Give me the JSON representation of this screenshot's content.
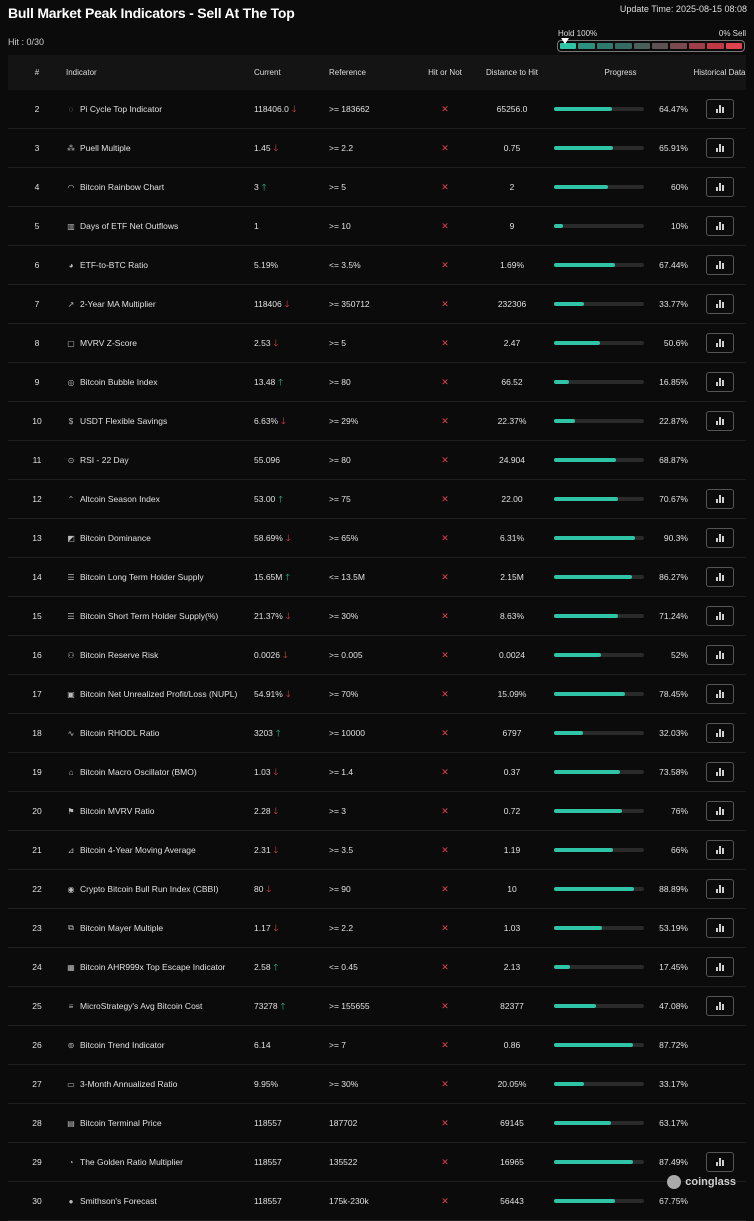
{
  "header": {
    "title": "Bull Market Peak Indicators - Sell At The Top",
    "update_time": "Update Time: 2025-08-15 08:08",
    "hit": "Hit : 0/30",
    "hold_label": "Hold 100%",
    "sell_label": "0% Sell",
    "meter_colors": [
      "#2ec4a5",
      "#2e8f7e",
      "#2e7a6e",
      "#356b63",
      "#4a5e5a",
      "#5d5153",
      "#7a4a50",
      "#9e3f4a",
      "#c23946",
      "#e0424e"
    ]
  },
  "columns": {
    "num": "#",
    "indicator": "Indicator",
    "current": "Current",
    "reference": "Reference",
    "hit": "Hit or Not",
    "distance": "Distance to Hit",
    "progress": "Progress",
    "historical": "Historical Data"
  },
  "rows": [
    {
      "num": "2",
      "icon": "pi-cycle-icon",
      "glyph": "◌",
      "name": "Pi Cycle Top Indicator",
      "current": "118406.0",
      "trend": "down",
      "reference": ">= 183662",
      "hit": "✕",
      "distance": "65256.0",
      "progress": 64.47,
      "pct": "64.47%",
      "hist": true
    },
    {
      "num": "3",
      "icon": "puell-icon",
      "glyph": "⁂",
      "name": "Puell Multiple",
      "current": "1.45",
      "trend": "down",
      "reference": ">= 2.2",
      "hit": "✕",
      "distance": "0.75",
      "progress": 65.91,
      "pct": "65.91%",
      "hist": true
    },
    {
      "num": "4",
      "icon": "rainbow-icon",
      "glyph": "◠",
      "name": "Bitcoin Rainbow Chart",
      "current": "3",
      "trend": "up",
      "reference": ">= 5",
      "hit": "✕",
      "distance": "2",
      "progress": 60,
      "pct": "60%",
      "hist": true
    },
    {
      "num": "5",
      "icon": "bar-chart-icon",
      "glyph": "▥",
      "name": "Days of ETF Net Outflows",
      "current": "1",
      "trend": "none",
      "reference": ">= 10",
      "hit": "✕",
      "distance": "9",
      "progress": 10,
      "pct": "10%",
      "hist": true
    },
    {
      "num": "6",
      "icon": "pie-chart-icon",
      "glyph": "◕",
      "name": "ETF-to-BTC Ratio",
      "current": "5.19%",
      "trend": "none",
      "reference": "<= 3.5%",
      "hit": "✕",
      "distance": "1.69%",
      "progress": 67.44,
      "pct": "67.44%",
      "hist": true
    },
    {
      "num": "7",
      "icon": "line-chart-icon",
      "glyph": "↗",
      "name": "2-Year MA Multiplier",
      "current": "118406",
      "trend": "down",
      "reference": ">= 350712",
      "hit": "✕",
      "distance": "232306",
      "progress": 33.77,
      "pct": "33.77%",
      "hist": true
    },
    {
      "num": "8",
      "icon": "mvrv-zscore-icon",
      "glyph": "▢",
      "name": "MVRV Z-Score",
      "current": "2.53",
      "trend": "down",
      "reference": ">= 5",
      "hit": "✕",
      "distance": "2.47",
      "progress": 50.6,
      "pct": "50.6%",
      "hist": true
    },
    {
      "num": "9",
      "icon": "bubble-icon",
      "glyph": "◎",
      "name": "Bitcoin Bubble Index",
      "current": "13.48",
      "trend": "up",
      "reference": ">= 80",
      "hit": "✕",
      "distance": "66.52",
      "progress": 16.85,
      "pct": "16.85%",
      "hist": true
    },
    {
      "num": "10",
      "icon": "dollar-icon",
      "glyph": "$",
      "name": "USDT Flexible Savings",
      "current": "6.63%",
      "trend": "down",
      "reference": ">= 29%",
      "hit": "✕",
      "distance": "22.37%",
      "progress": 22.87,
      "pct": "22.87%",
      "hist": true
    },
    {
      "num": "11",
      "icon": "rsi-icon",
      "glyph": "⊙",
      "name": "RSI - 22 Day",
      "current": "55.096",
      "trend": "none",
      "reference": ">= 80",
      "hit": "✕",
      "distance": "24.904",
      "progress": 68.87,
      "pct": "68.87%",
      "hist": false
    },
    {
      "num": "12",
      "icon": "rocket-icon",
      "glyph": "⌃",
      "name": "Altcoin Season Index",
      "current": "53.00",
      "trend": "up",
      "reference": ">= 75",
      "hit": "✕",
      "distance": "22.00",
      "progress": 70.67,
      "pct": "70.67%",
      "hist": true
    },
    {
      "num": "13",
      "icon": "dominance-icon",
      "glyph": "◩",
      "name": "Bitcoin Dominance",
      "current": "58.69%",
      "trend": "down",
      "reference": ">= 65%",
      "hit": "✕",
      "distance": "6.31%",
      "progress": 90.3,
      "pct": "90.3%",
      "hist": true
    },
    {
      "num": "14",
      "icon": "database-icon",
      "glyph": "☰",
      "name": "Bitcoin Long Term Holder Supply",
      "current": "15.65M",
      "trend": "up",
      "reference": "<= 13.5M",
      "hit": "✕",
      "distance": "2.15M",
      "progress": 86.27,
      "pct": "86.27%",
      "hist": true
    },
    {
      "num": "15",
      "icon": "database-icon",
      "glyph": "☰",
      "name": "Bitcoin Short Term Holder Supply(%)",
      "current": "21.37%",
      "trend": "down",
      "reference": ">= 30%",
      "hit": "✕",
      "distance": "8.63%",
      "progress": 71.24,
      "pct": "71.24%",
      "hist": true
    },
    {
      "num": "16",
      "icon": "reserve-risk-icon",
      "glyph": "⚇",
      "name": "Bitcoin Reserve Risk",
      "current": "0.0026",
      "trend": "down",
      "reference": ">= 0.005",
      "hit": "✕",
      "distance": "0.0024",
      "progress": 52,
      "pct": "52%",
      "hist": true
    },
    {
      "num": "17",
      "icon": "nupl-icon",
      "glyph": "▣",
      "name": "Bitcoin Net Unrealized Profit/Loss (NUPL)",
      "current": "54.91%",
      "trend": "down",
      "reference": ">= 70%",
      "hit": "✕",
      "distance": "15.09%",
      "progress": 78.45,
      "pct": "78.45%",
      "hist": true
    },
    {
      "num": "18",
      "icon": "pulse-icon",
      "glyph": "∿",
      "name": "Bitcoin RHODL Ratio",
      "current": "3203",
      "trend": "up",
      "reference": ">= 10000",
      "hit": "✕",
      "distance": "6797",
      "progress": 32.03,
      "pct": "32.03%",
      "hist": true
    },
    {
      "num": "19",
      "icon": "bank-icon",
      "glyph": "⌂",
      "name": "Bitcoin Macro Oscillator (BMO)",
      "current": "1.03",
      "trend": "down",
      "reference": ">= 1.4",
      "hit": "✕",
      "distance": "0.37",
      "progress": 73.58,
      "pct": "73.58%",
      "hist": true
    },
    {
      "num": "20",
      "icon": "flag-icon",
      "glyph": "⚑",
      "name": "Bitcoin MVRV Ratio",
      "current": "2.28",
      "trend": "down",
      "reference": ">= 3",
      "hit": "✕",
      "distance": "0.72",
      "progress": 76,
      "pct": "76%",
      "hist": true
    },
    {
      "num": "21",
      "icon": "moving-average-icon",
      "glyph": "⊿",
      "name": "Bitcoin 4-Year Moving Average",
      "current": "2.31",
      "trend": "down",
      "reference": ">= 3.5",
      "hit": "✕",
      "distance": "1.19",
      "progress": 66,
      "pct": "66%",
      "hist": true
    },
    {
      "num": "22",
      "icon": "coin-icon",
      "glyph": "◉",
      "name": "Crypto Bitcoin Bull Run Index (CBBI)",
      "current": "80",
      "trend": "down",
      "reference": ">= 90",
      "hit": "✕",
      "distance": "10",
      "progress": 88.89,
      "pct": "88.89%",
      "hist": true
    },
    {
      "num": "23",
      "icon": "copy-icon",
      "glyph": "⧉",
      "name": "Bitcoin Mayer Multiple",
      "current": "1.17",
      "trend": "down",
      "reference": ">= 2.2",
      "hit": "✕",
      "distance": "1.03",
      "progress": 53.19,
      "pct": "53.19%",
      "hist": true
    },
    {
      "num": "24",
      "icon": "ahr-icon",
      "glyph": "▦",
      "name": "Bitcoin AHR999x Top Escape Indicator",
      "current": "2.58",
      "trend": "up",
      "reference": "<= 0.45",
      "hit": "✕",
      "distance": "2.13",
      "progress": 17.45,
      "pct": "17.45%",
      "hist": true
    },
    {
      "num": "25",
      "icon": "lines-icon",
      "glyph": "≡",
      "name": "MicroStrategy's Avg Bitcoin Cost",
      "current": "73278",
      "trend": "up",
      "reference": ">= 155655",
      "hit": "✕",
      "distance": "82377",
      "progress": 47.08,
      "pct": "47.08%",
      "hist": true
    },
    {
      "num": "26",
      "icon": "trend-icon",
      "glyph": "⊚",
      "name": "Bitcoin Trend Indicator",
      "current": "6.14",
      "trend": "none",
      "reference": ">= 7",
      "hit": "✕",
      "distance": "0.86",
      "progress": 87.72,
      "pct": "87.72%",
      "hist": false
    },
    {
      "num": "27",
      "icon": "ratio-icon",
      "glyph": "▭",
      "name": "3-Month Annualized Ratio",
      "current": "9.95%",
      "trend": "none",
      "reference": ">= 30%",
      "hit": "✕",
      "distance": "20.05%",
      "progress": 33.17,
      "pct": "33.17%",
      "hist": false
    },
    {
      "num": "28",
      "icon": "terminal-icon",
      "glyph": "▤",
      "name": "Bitcoin Terminal Price",
      "current": "118557",
      "trend": "none",
      "reference": "187702",
      "hit": "✕",
      "distance": "69145",
      "progress": 63.17,
      "pct": "63.17%",
      "hist": false
    },
    {
      "num": "29",
      "icon": "golden-ratio-icon",
      "glyph": "◔",
      "name": "The Golden Ratio Multiplier",
      "current": "118557",
      "trend": "none",
      "reference": "135522",
      "hit": "✕",
      "distance": "16965",
      "progress": 87.49,
      "pct": "87.49%",
      "hist": true
    },
    {
      "num": "30",
      "icon": "forecast-icon",
      "glyph": "●",
      "name": "Smithson's Forecast",
      "current": "118557",
      "trend": "none",
      "reference": "175k-230k",
      "hit": "✕",
      "distance": "56443",
      "progress": 67.75,
      "pct": "67.75%",
      "hist": false
    }
  ],
  "watermark": "coinglass"
}
